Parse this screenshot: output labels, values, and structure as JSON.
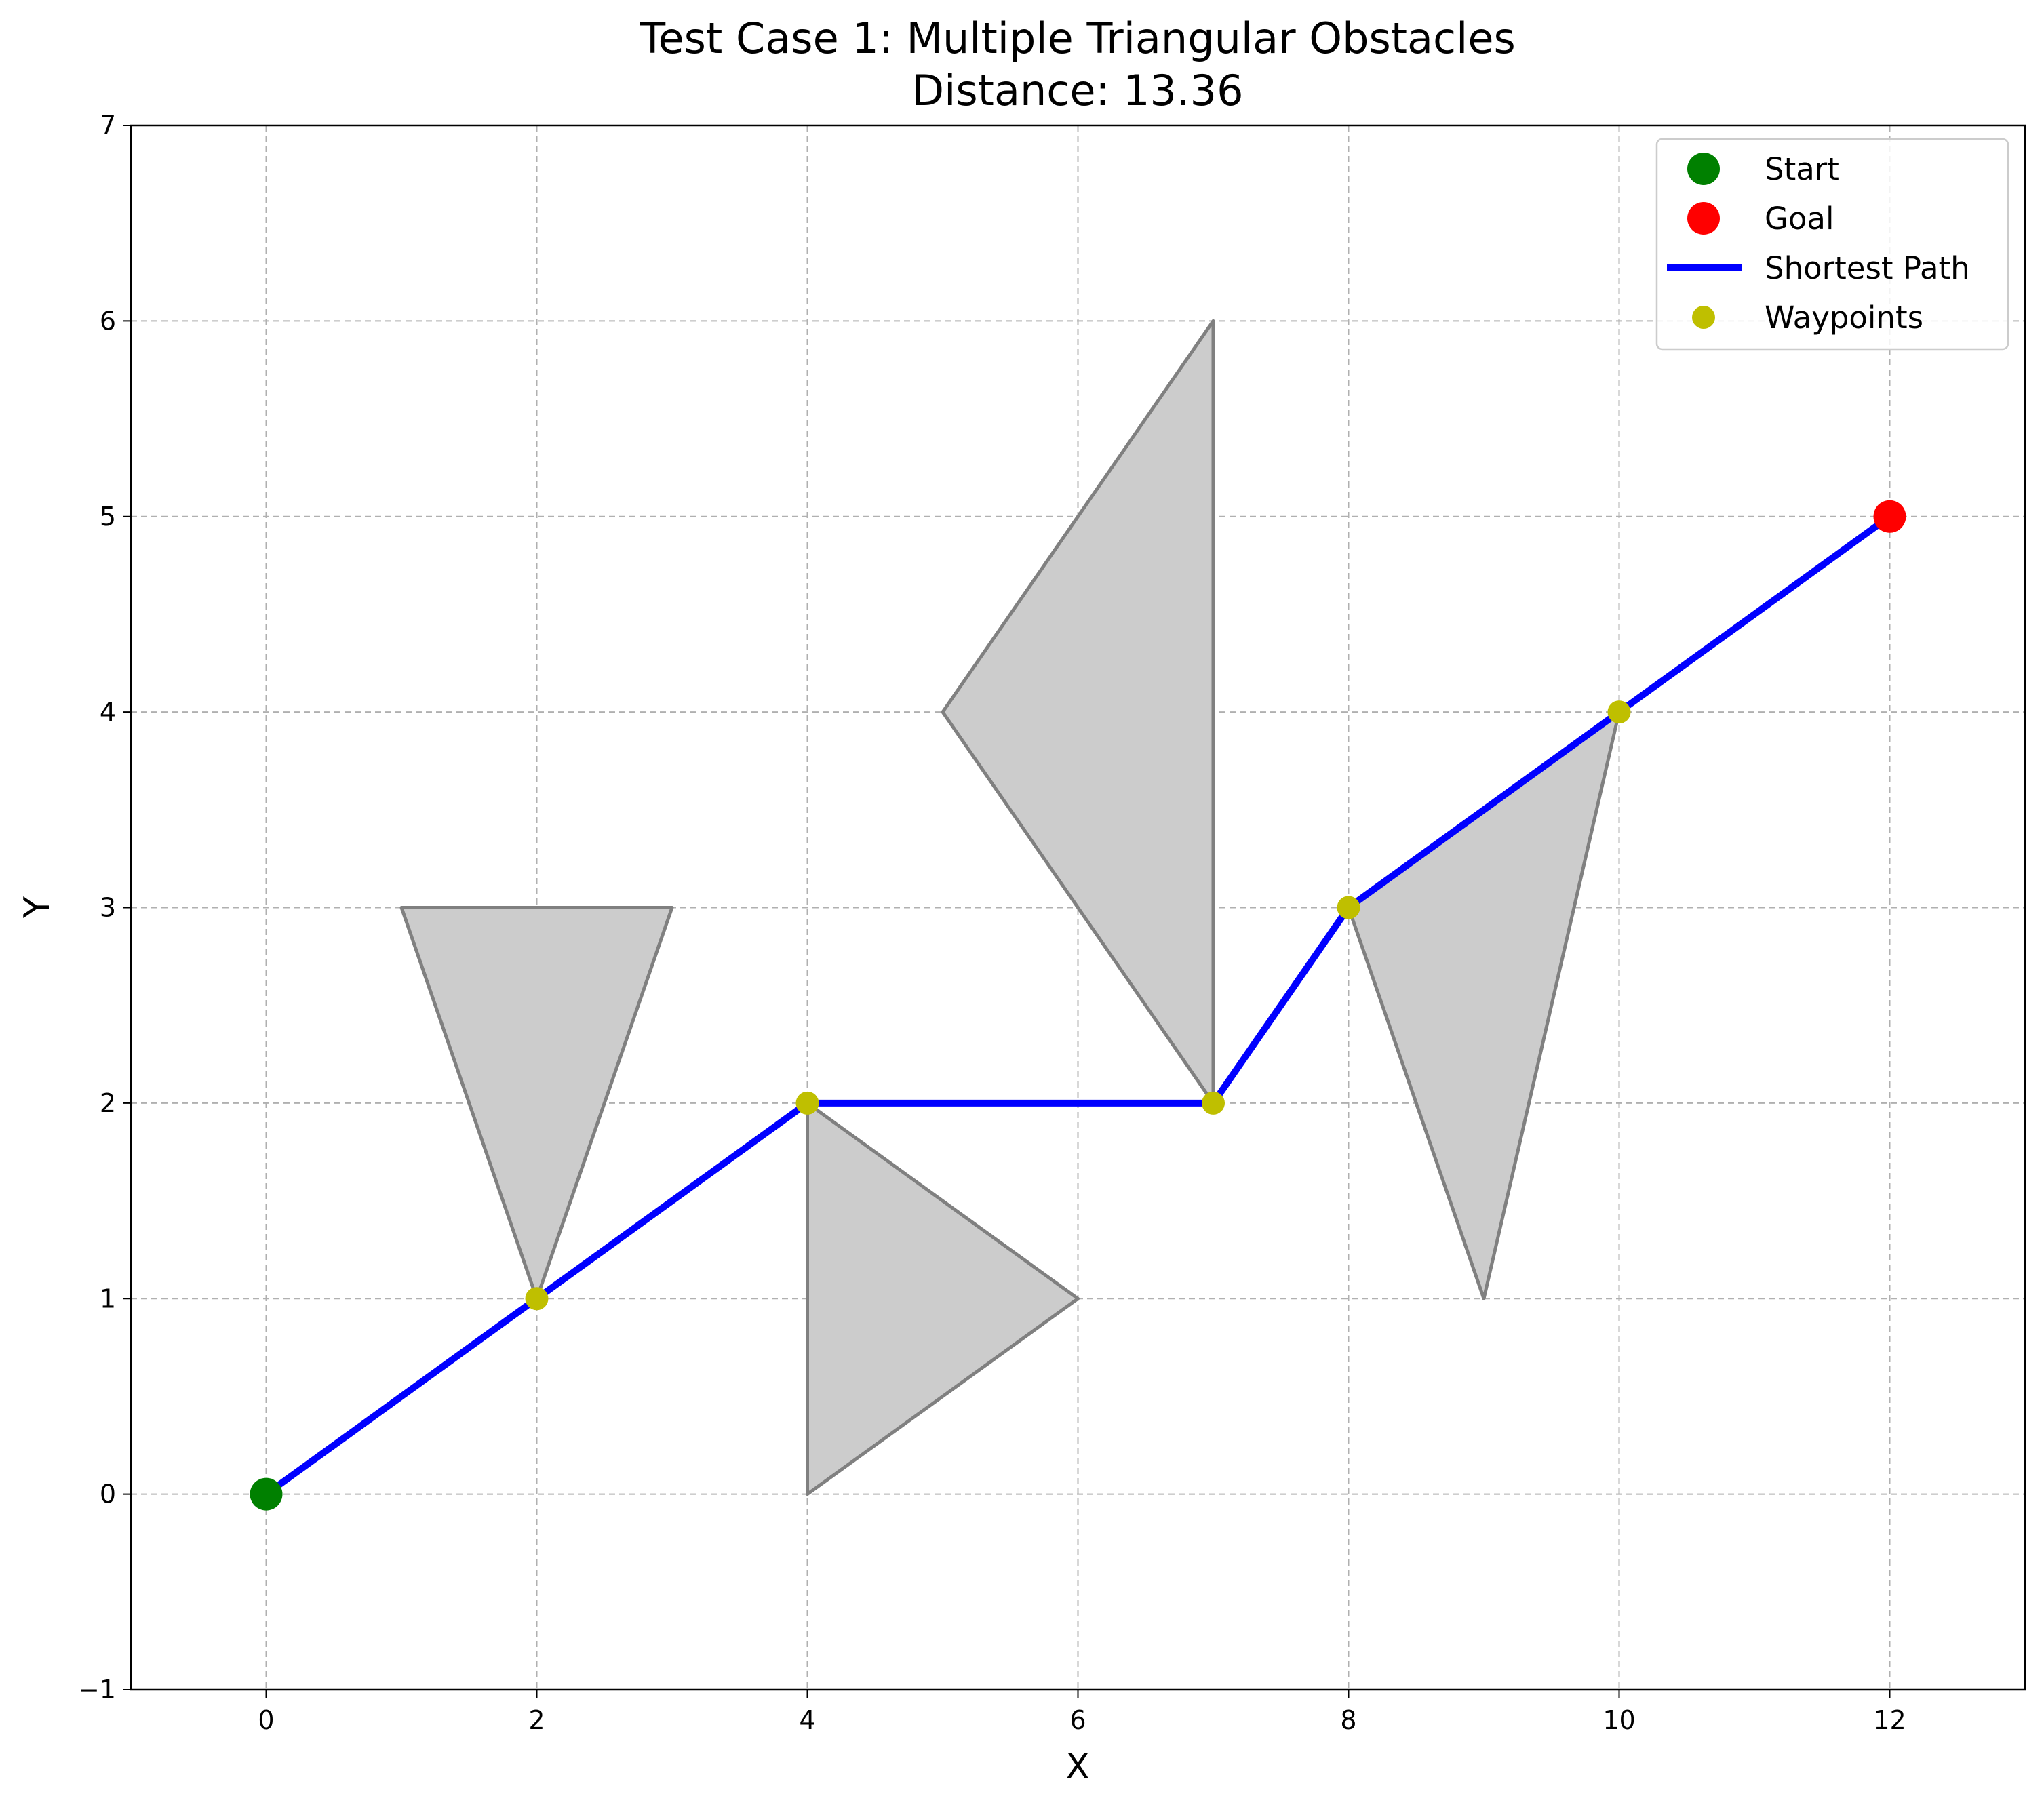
{
  "chart_data": {
    "type": "scatter",
    "title": "Test Case 1: Multiple Triangular Obstacles",
    "subtitle": "Distance: 13.36",
    "xlabel": "X",
    "ylabel": "Y",
    "xlim": [
      -1,
      13
    ],
    "ylim": [
      -1,
      7
    ],
    "xticks": [
      0,
      2,
      4,
      6,
      8,
      10,
      12
    ],
    "yticks": [
      -1,
      0,
      1,
      2,
      3,
      4,
      5,
      6,
      7
    ],
    "grid": true,
    "legend_position": "top-right",
    "colors": {
      "start": "#008000",
      "goal": "#ff0000",
      "path": "#0000ff",
      "waypoints": "#bfbf00",
      "obstacle_fill": "#cccccc",
      "obstacle_edge": "#808080"
    },
    "obstacles": [
      [
        [
          1,
          3
        ],
        [
          3,
          3
        ],
        [
          2,
          1
        ]
      ],
      [
        [
          4,
          2
        ],
        [
          6,
          1
        ],
        [
          4,
          0
        ]
      ],
      [
        [
          5,
          4
        ],
        [
          7,
          6
        ],
        [
          7,
          2
        ]
      ],
      [
        [
          8,
          3
        ],
        [
          10,
          4
        ],
        [
          9,
          1
        ]
      ]
    ],
    "series": [
      {
        "name": "Start",
        "points": [
          [
            0,
            0
          ]
        ]
      },
      {
        "name": "Goal",
        "points": [
          [
            12,
            5
          ]
        ]
      },
      {
        "name": "Shortest Path",
        "points": [
          [
            0,
            0
          ],
          [
            2,
            1
          ],
          [
            4,
            2
          ],
          [
            7,
            2
          ],
          [
            8,
            3
          ],
          [
            10,
            4
          ],
          [
            12,
            5
          ]
        ]
      },
      {
        "name": "Waypoints",
        "points": [
          [
            2,
            1
          ],
          [
            4,
            2
          ],
          [
            7,
            2
          ],
          [
            8,
            3
          ],
          [
            10,
            4
          ]
        ]
      }
    ]
  }
}
